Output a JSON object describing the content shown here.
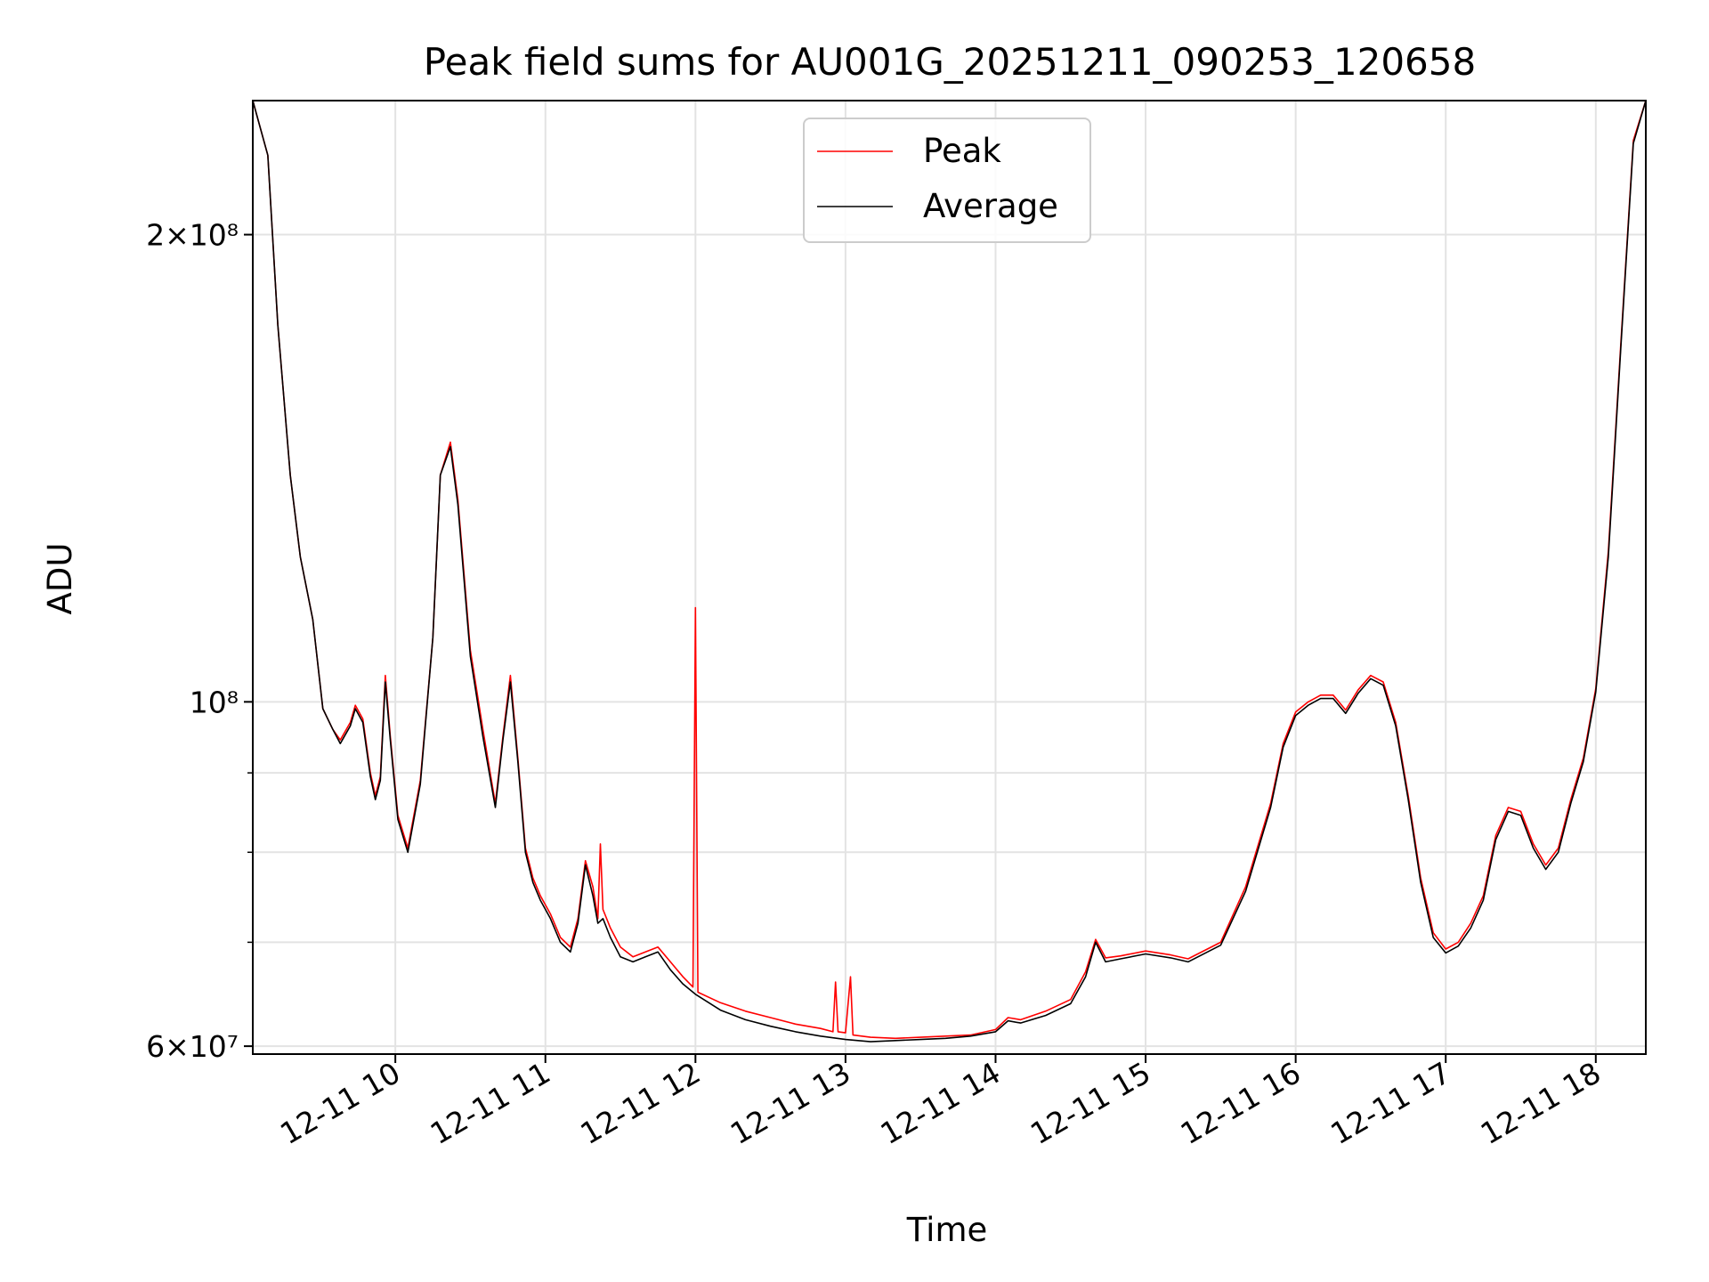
{
  "chart_data": {
    "type": "line",
    "title": "Peak field sums for AU001G_20251211_090253_120658",
    "xlabel": "Time",
    "ylabel": "ADU",
    "xscale": "time",
    "yscale": "log",
    "xlim": [
      "2025-12-11 09:03",
      "2025-12-11 18:20"
    ],
    "ylim": [
      59300000,
      244000000
    ],
    "grid": true,
    "legend_position": "upper center",
    "x_ticks": [
      "12-11 10",
      "12-11 11",
      "12-11 12",
      "12-11 13",
      "12-11 14",
      "12-11 15",
      "12-11 16",
      "12-11 17",
      "12-11 18"
    ],
    "y_ticks": [
      {
        "value": 60000000,
        "label": "6×10⁷"
      },
      {
        "value": 100000000,
        "label": "10⁸"
      },
      {
        "value": 200000000,
        "label": "2×10⁸"
      }
    ],
    "y_minor_ticks": [
      70000000,
      80000000,
      90000000
    ],
    "series": [
      {
        "name": "Peak",
        "color": "#ff0000",
        "points": [
          [
            "09:03",
            244000000
          ],
          [
            "09:09",
            225000000
          ],
          [
            "09:13",
            175000000
          ],
          [
            "09:18",
            140000000
          ],
          [
            "09:22",
            124000000
          ],
          [
            "09:27",
            113000000
          ],
          [
            "09:31",
            99000000
          ],
          [
            "09:35",
            96000000
          ],
          [
            "09:38",
            94500000
          ],
          [
            "09:42",
            97000000
          ],
          [
            "09:44",
            99500000
          ],
          [
            "09:47",
            97500000
          ],
          [
            "09:50",
            90000000
          ],
          [
            "09:52",
            87000000
          ],
          [
            "09:54",
            89500000
          ],
          [
            "09:56",
            104000000
          ],
          [
            "09:58",
            95000000
          ],
          [
            "10:01",
            84500000
          ],
          [
            "10:05",
            80500000
          ],
          [
            "10:10",
            89000000
          ],
          [
            "10:15",
            110000000
          ],
          [
            "10:18",
            140000000
          ],
          [
            "10:22",
            147000000
          ],
          [
            "10:25",
            135000000
          ],
          [
            "10:30",
            108000000
          ],
          [
            "10:35",
            96000000
          ],
          [
            "10:40",
            86000000
          ],
          [
            "10:43",
            95000000
          ],
          [
            "10:46",
            104000000
          ],
          [
            "10:49",
            92000000
          ],
          [
            "10:52",
            80500000
          ],
          [
            "10:55",
            77000000
          ],
          [
            "10:58",
            75000000
          ],
          [
            "11:02",
            73000000
          ],
          [
            "11:06",
            70500000
          ],
          [
            "11:10",
            69500000
          ],
          [
            "11:13",
            72500000
          ],
          [
            "11:16",
            79000000
          ],
          [
            "11:19",
            76000000
          ],
          [
            "11:21",
            72500000
          ],
          [
            "11:22",
            81000000
          ],
          [
            "11:23",
            73500000
          ],
          [
            "11:26",
            71500000
          ],
          [
            "11:30",
            69500000
          ],
          [
            "11:35",
            68500000
          ],
          [
            "11:40",
            69000000
          ],
          [
            "11:45",
            69500000
          ],
          [
            "11:50",
            68000000
          ],
          [
            "11:55",
            66500000
          ],
          [
            "11:59",
            65500000
          ],
          [
            "12:00",
            115000000
          ],
          [
            "12:01",
            65000000
          ],
          [
            "12:10",
            64000000
          ],
          [
            "12:20",
            63200000
          ],
          [
            "12:30",
            62600000
          ],
          [
            "12:40",
            62000000
          ],
          [
            "12:50",
            61600000
          ],
          [
            "12:55",
            61300000
          ],
          [
            "12:56",
            66000000
          ],
          [
            "12:57",
            61300000
          ],
          [
            "13:00",
            61200000
          ],
          [
            "13:02",
            66500000
          ],
          [
            "13:03",
            61000000
          ],
          [
            "13:10",
            60800000
          ],
          [
            "13:20",
            60700000
          ],
          [
            "13:30",
            60800000
          ],
          [
            "13:40",
            60900000
          ],
          [
            "13:50",
            61000000
          ],
          [
            "14:00",
            61500000
          ],
          [
            "14:05",
            62600000
          ],
          [
            "14:10",
            62400000
          ],
          [
            "14:20",
            63200000
          ],
          [
            "14:30",
            64300000
          ],
          [
            "14:36",
            67000000
          ],
          [
            "14:40",
            70300000
          ],
          [
            "14:44",
            68400000
          ],
          [
            "14:50",
            68600000
          ],
          [
            "15:00",
            69100000
          ],
          [
            "15:10",
            68700000
          ],
          [
            "15:17",
            68300000
          ],
          [
            "15:30",
            70000000
          ],
          [
            "15:40",
            76000000
          ],
          [
            "15:50",
            86000000
          ],
          [
            "15:55",
            94000000
          ],
          [
            "16:00",
            98500000
          ],
          [
            "16:05",
            100000000
          ],
          [
            "16:10",
            101000000
          ],
          [
            "16:15",
            101000000
          ],
          [
            "16:20",
            98800000
          ],
          [
            "16:25",
            101800000
          ],
          [
            "16:30",
            104000000
          ],
          [
            "16:35",
            103000000
          ],
          [
            "16:40",
            97000000
          ],
          [
            "16:45",
            87000000
          ],
          [
            "16:50",
            77000000
          ],
          [
            "16:55",
            71000000
          ],
          [
            "17:00",
            69300000
          ],
          [
            "17:05",
            70000000
          ],
          [
            "17:10",
            72000000
          ],
          [
            "17:15",
            75000000
          ],
          [
            "17:20",
            82000000
          ],
          [
            "17:25",
            85500000
          ],
          [
            "17:30",
            85000000
          ],
          [
            "17:35",
            81000000
          ],
          [
            "17:40",
            78500000
          ],
          [
            "17:45",
            80500000
          ],
          [
            "17:50",
            86500000
          ],
          [
            "17:55",
            92000000
          ],
          [
            "18:00",
            102000000
          ],
          [
            "18:05",
            125000000
          ],
          [
            "18:10",
            170000000
          ],
          [
            "18:15",
            230000000
          ],
          [
            "18:20",
            244000000
          ]
        ]
      },
      {
        "name": "Average",
        "color": "#000000",
        "points": [
          [
            "09:03",
            244000000
          ],
          [
            "09:09",
            225000000
          ],
          [
            "09:13",
            175000000
          ],
          [
            "09:18",
            140000000
          ],
          [
            "09:22",
            124000000
          ],
          [
            "09:27",
            113000000
          ],
          [
            "09:31",
            99000000
          ],
          [
            "09:35",
            96000000
          ],
          [
            "09:38",
            94000000
          ],
          [
            "09:42",
            96500000
          ],
          [
            "09:44",
            99000000
          ],
          [
            "09:47",
            97000000
          ],
          [
            "09:50",
            89500000
          ],
          [
            "09:52",
            86500000
          ],
          [
            "09:54",
            89000000
          ],
          [
            "09:56",
            103000000
          ],
          [
            "09:58",
            94500000
          ],
          [
            "10:01",
            84000000
          ],
          [
            "10:05",
            80000000
          ],
          [
            "10:10",
            88500000
          ],
          [
            "10:15",
            110000000
          ],
          [
            "10:18",
            140000000
          ],
          [
            "10:22",
            146000000
          ],
          [
            "10:25",
            134000000
          ],
          [
            "10:30",
            107000000
          ],
          [
            "10:35",
            95000000
          ],
          [
            "10:40",
            85500000
          ],
          [
            "10:43",
            94500000
          ],
          [
            "10:46",
            103000000
          ],
          [
            "10:49",
            91500000
          ],
          [
            "10:52",
            80000000
          ],
          [
            "10:55",
            76500000
          ],
          [
            "10:58",
            74500000
          ],
          [
            "11:02",
            72500000
          ],
          [
            "11:06",
            70000000
          ],
          [
            "11:10",
            69000000
          ],
          [
            "11:13",
            72000000
          ],
          [
            "11:16",
            78500000
          ],
          [
            "11:19",
            75000000
          ],
          [
            "11:21",
            72000000
          ],
          [
            "11:23",
            72500000
          ],
          [
            "11:26",
            70500000
          ],
          [
            "11:30",
            68500000
          ],
          [
            "11:35",
            68000000
          ],
          [
            "11:40",
            68500000
          ],
          [
            "11:45",
            69000000
          ],
          [
            "11:50",
            67200000
          ],
          [
            "11:55",
            65800000
          ],
          [
            "12:00",
            64800000
          ],
          [
            "12:10",
            63300000
          ],
          [
            "12:20",
            62400000
          ],
          [
            "12:30",
            61800000
          ],
          [
            "12:40",
            61300000
          ],
          [
            "12:50",
            60900000
          ],
          [
            "13:00",
            60600000
          ],
          [
            "13:10",
            60400000
          ],
          [
            "13:20",
            60500000
          ],
          [
            "13:30",
            60600000
          ],
          [
            "13:40",
            60700000
          ],
          [
            "13:50",
            60900000
          ],
          [
            "14:00",
            61300000
          ],
          [
            "14:05",
            62300000
          ],
          [
            "14:10",
            62100000
          ],
          [
            "14:20",
            62800000
          ],
          [
            "14:30",
            63900000
          ],
          [
            "14:36",
            66500000
          ],
          [
            "14:40",
            70000000
          ],
          [
            "14:44",
            68000000
          ],
          [
            "14:50",
            68300000
          ],
          [
            "15:00",
            68800000
          ],
          [
            "15:10",
            68400000
          ],
          [
            "15:17",
            68000000
          ],
          [
            "15:30",
            69700000
          ],
          [
            "15:40",
            75500000
          ],
          [
            "15:50",
            85500000
          ],
          [
            "15:55",
            93500000
          ],
          [
            "16:00",
            98000000
          ],
          [
            "16:05",
            99500000
          ],
          [
            "16:10",
            100500000
          ],
          [
            "16:15",
            100500000
          ],
          [
            "16:20",
            98300000
          ],
          [
            "16:25",
            101300000
          ],
          [
            "16:30",
            103500000
          ],
          [
            "16:35",
            102500000
          ],
          [
            "16:40",
            96500000
          ],
          [
            "16:45",
            86500000
          ],
          [
            "16:50",
            76500000
          ],
          [
            "16:55",
            70500000
          ],
          [
            "17:00",
            68900000
          ],
          [
            "17:05",
            69600000
          ],
          [
            "17:10",
            71500000
          ],
          [
            "17:15",
            74500000
          ],
          [
            "17:20",
            81500000
          ],
          [
            "17:25",
            85000000
          ],
          [
            "17:30",
            84500000
          ],
          [
            "17:35",
            80500000
          ],
          [
            "17:40",
            78000000
          ],
          [
            "17:45",
            80000000
          ],
          [
            "17:50",
            86000000
          ],
          [
            "17:55",
            91500000
          ],
          [
            "18:00",
            101500000
          ],
          [
            "18:05",
            124000000
          ],
          [
            "18:10",
            169000000
          ],
          [
            "18:15",
            229000000
          ],
          [
            "18:20",
            244000000
          ]
        ]
      }
    ]
  }
}
